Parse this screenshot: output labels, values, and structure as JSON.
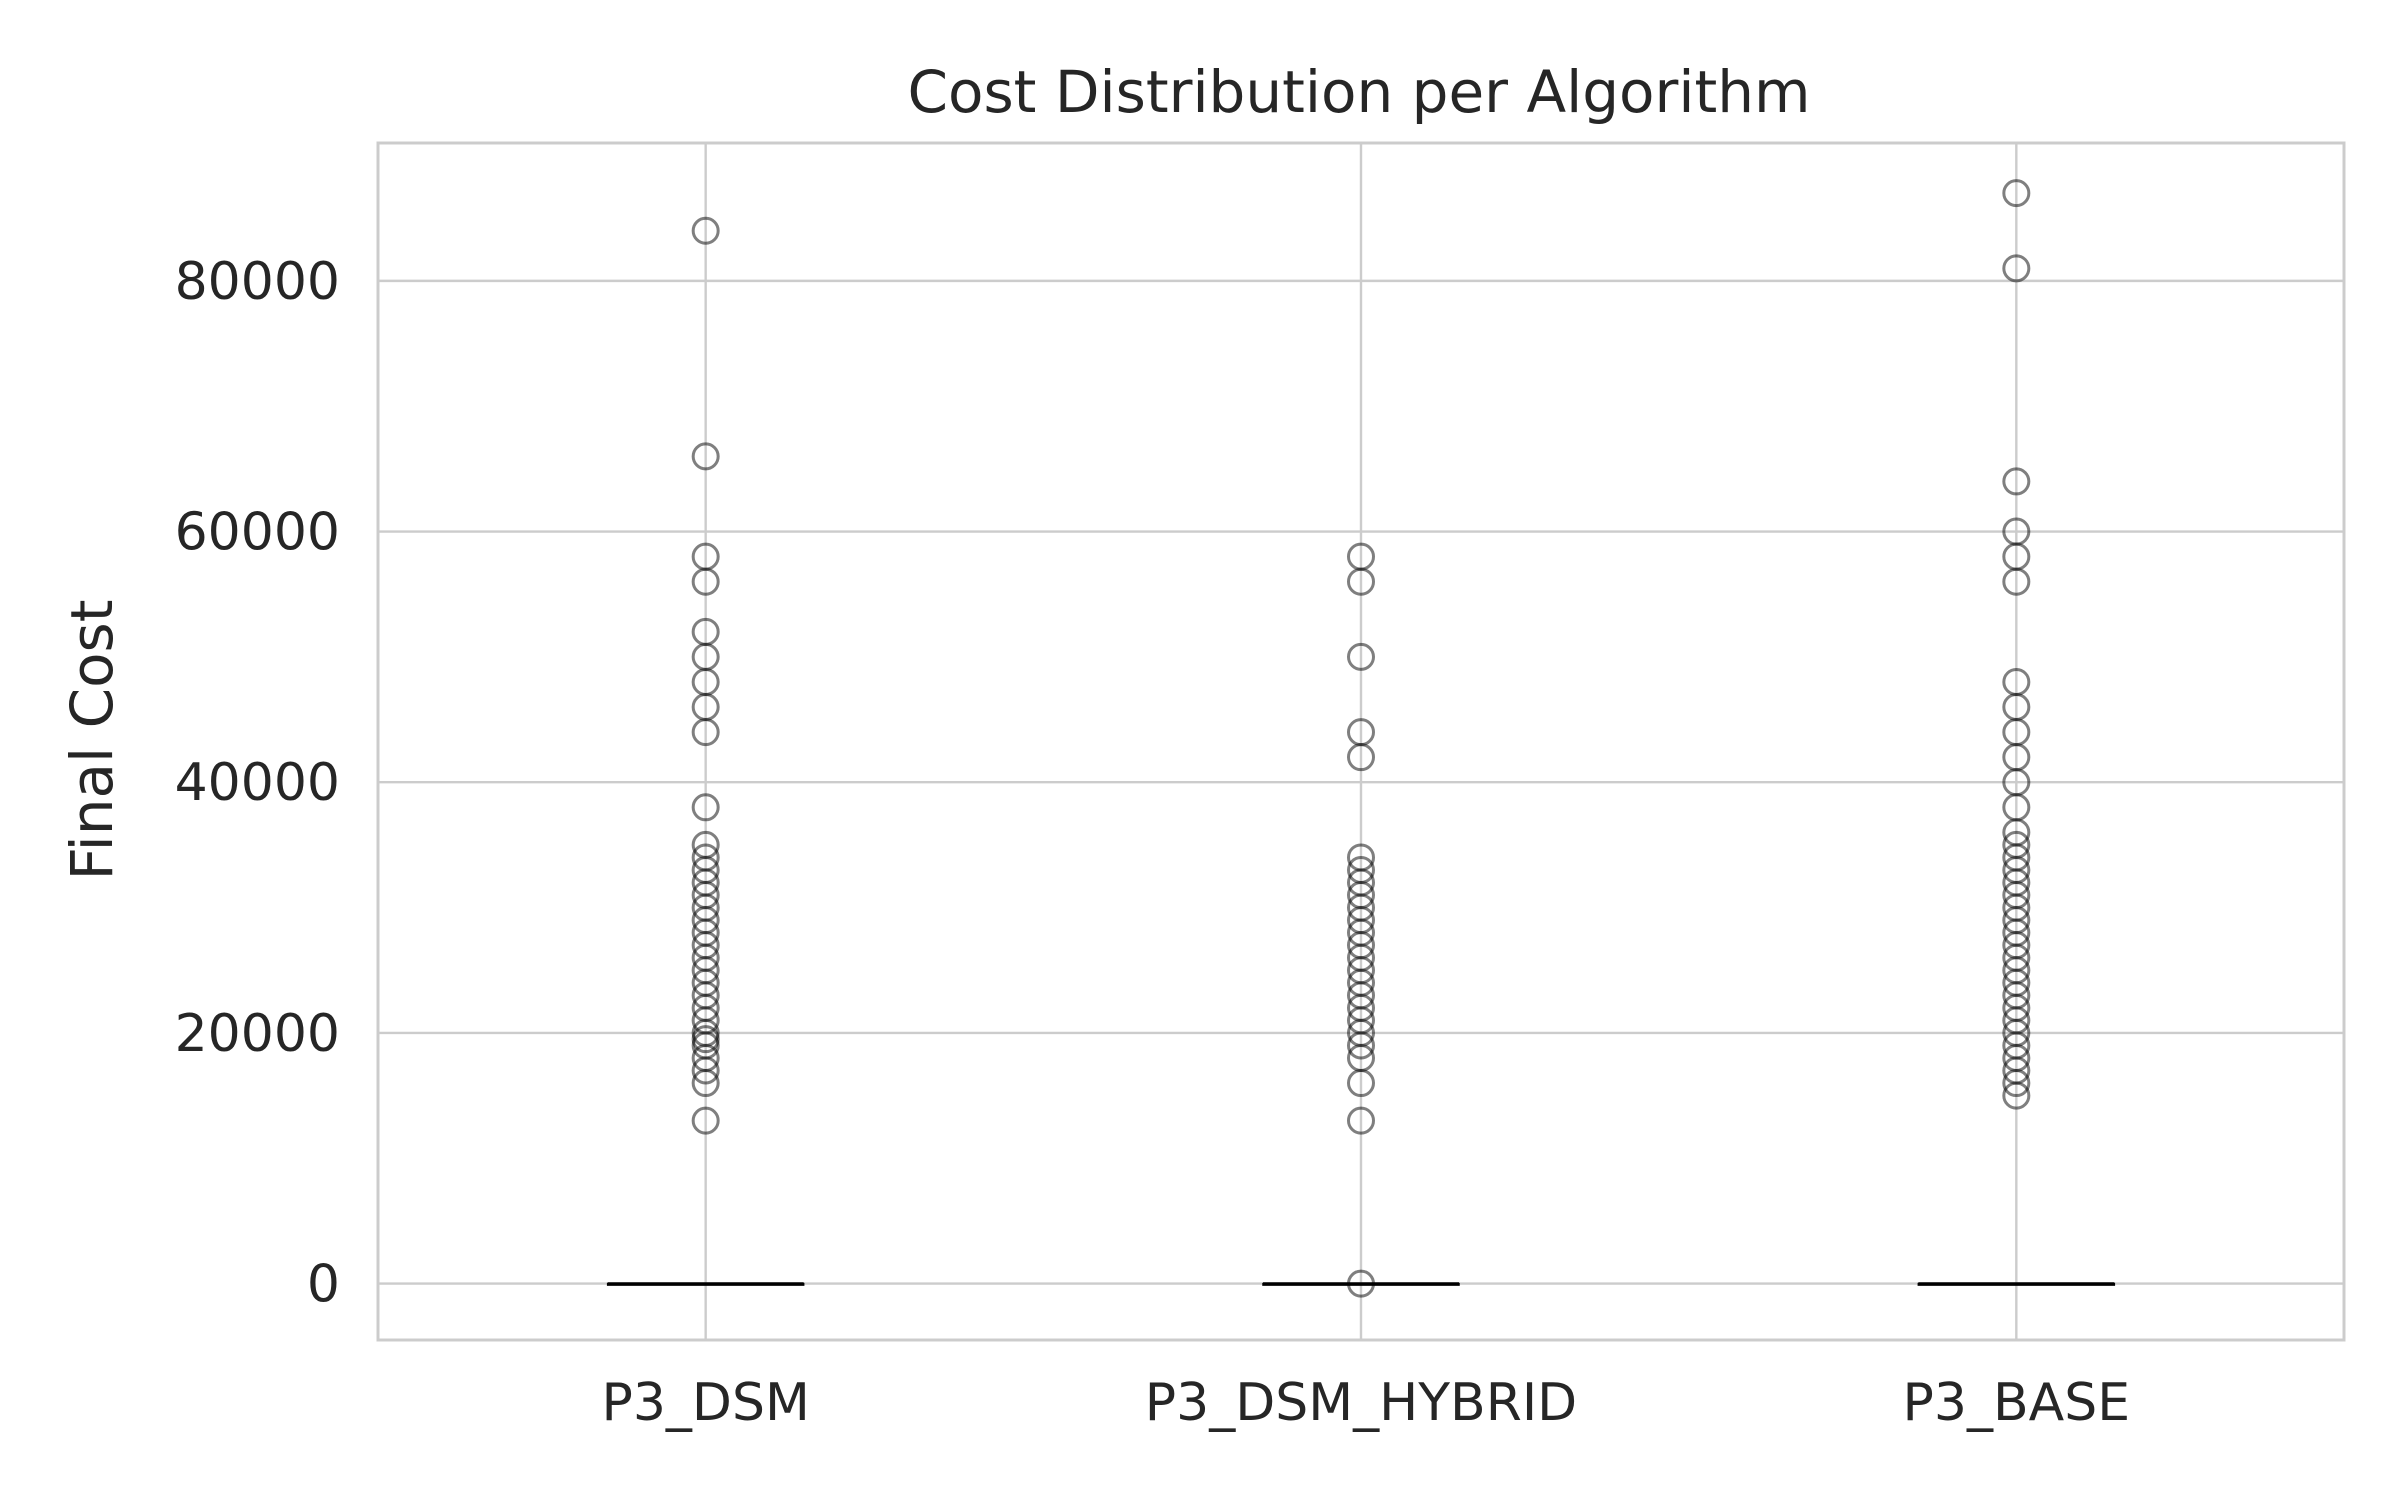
{
  "chart_data": {
    "type": "box",
    "title": "Cost Distribution per Algorithm",
    "xlabel": "",
    "ylabel": "Final Cost",
    "categories": [
      "P3_DSM",
      "P3_DSM_HYBRID",
      "P3_BASE"
    ],
    "ylim": [
      -4500,
      91000
    ],
    "yticks": [
      0,
      20000,
      40000,
      60000,
      80000
    ],
    "ytick_labels": [
      "0",
      "20000",
      "40000",
      "60000",
      "80000"
    ],
    "grid": true,
    "legend": "none",
    "boxes": [
      {
        "category": "P3_DSM",
        "median": 0,
        "q1": 0,
        "q3": 0,
        "whisker_low": 0,
        "whisker_high": 0,
        "outliers": [
          13000,
          16000,
          17000,
          18000,
          19000,
          19500,
          20000,
          21000,
          22000,
          23000,
          24000,
          25000,
          26000,
          27000,
          28000,
          29000,
          30000,
          31000,
          32000,
          33000,
          34000,
          35000,
          38000,
          44000,
          46000,
          48000,
          50000,
          52000,
          56000,
          58000,
          66000,
          84000
        ]
      },
      {
        "category": "P3_DSM_HYBRID",
        "median": 0,
        "q1": 0,
        "q3": 0,
        "whisker_low": 0,
        "whisker_high": 0,
        "outliers": [
          0,
          13000,
          16000,
          18000,
          19000,
          20000,
          21000,
          22000,
          23000,
          24000,
          25000,
          26000,
          27000,
          28000,
          29000,
          30000,
          31000,
          32000,
          33000,
          34000,
          42000,
          44000,
          50000,
          56000,
          58000
        ]
      },
      {
        "category": "P3_BASE",
        "median": 0,
        "q1": 0,
        "q3": 0,
        "whisker_low": 0,
        "whisker_high": 0,
        "outliers": [
          15000,
          16000,
          17000,
          18000,
          19000,
          20000,
          21000,
          22000,
          23000,
          24000,
          25000,
          26000,
          27000,
          28000,
          29000,
          30000,
          31000,
          32000,
          33000,
          34000,
          35000,
          36000,
          38000,
          40000,
          42000,
          44000,
          46000,
          48000,
          56000,
          58000,
          60000,
          64000,
          81000,
          87000
        ]
      }
    ],
    "colors": {
      "grid": "#cccccc",
      "frame": "#cccccc",
      "outlier_edge": "#000000",
      "median_line": "#000000",
      "text": "#262626"
    }
  }
}
